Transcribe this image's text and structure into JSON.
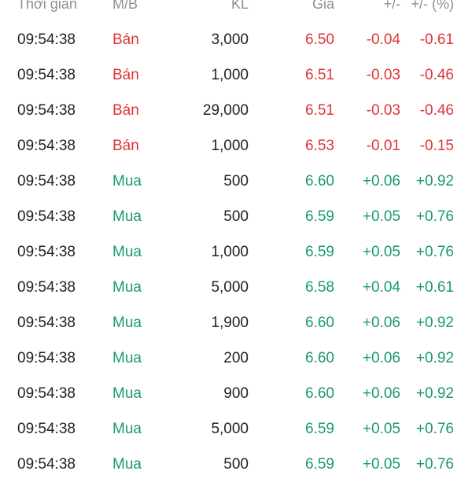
{
  "header": {
    "time": "Thời gian",
    "side": "M/B",
    "volume": "KL",
    "price": "Giá",
    "change": "+/-",
    "percent": "+/- (%)"
  },
  "colors": {
    "sell": "#e0333a",
    "buy": "#1a9a6c",
    "header": "#8e8e93",
    "text": "#222222"
  },
  "rows": [
    {
      "time": "09:54:38",
      "side": "Bán",
      "type": "sell",
      "volume": "3,000",
      "price": "6.50",
      "change": "-0.04",
      "percent": "-0.61"
    },
    {
      "time": "09:54:38",
      "side": "Bán",
      "type": "sell",
      "volume": "1,000",
      "price": "6.51",
      "change": "-0.03",
      "percent": "-0.46"
    },
    {
      "time": "09:54:38",
      "side": "Bán",
      "type": "sell",
      "volume": "29,000",
      "price": "6.51",
      "change": "-0.03",
      "percent": "-0.46"
    },
    {
      "time": "09:54:38",
      "side": "Bán",
      "type": "sell",
      "volume": "1,000",
      "price": "6.53",
      "change": "-0.01",
      "percent": "-0.15"
    },
    {
      "time": "09:54:38",
      "side": "Mua",
      "type": "buy",
      "volume": "500",
      "price": "6.60",
      "change": "+0.06",
      "percent": "+0.92"
    },
    {
      "time": "09:54:38",
      "side": "Mua",
      "type": "buy",
      "volume": "500",
      "price": "6.59",
      "change": "+0.05",
      "percent": "+0.76"
    },
    {
      "time": "09:54:38",
      "side": "Mua",
      "type": "buy",
      "volume": "1,000",
      "price": "6.59",
      "change": "+0.05",
      "percent": "+0.76"
    },
    {
      "time": "09:54:38",
      "side": "Mua",
      "type": "buy",
      "volume": "5,000",
      "price": "6.58",
      "change": "+0.04",
      "percent": "+0.61"
    },
    {
      "time": "09:54:38",
      "side": "Mua",
      "type": "buy",
      "volume": "1,900",
      "price": "6.60",
      "change": "+0.06",
      "percent": "+0.92"
    },
    {
      "time": "09:54:38",
      "side": "Mua",
      "type": "buy",
      "volume": "200",
      "price": "6.60",
      "change": "+0.06",
      "percent": "+0.92"
    },
    {
      "time": "09:54:38",
      "side": "Mua",
      "type": "buy",
      "volume": "900",
      "price": "6.60",
      "change": "+0.06",
      "percent": "+0.92"
    },
    {
      "time": "09:54:38",
      "side": "Mua",
      "type": "buy",
      "volume": "5,000",
      "price": "6.59",
      "change": "+0.05",
      "percent": "+0.76"
    },
    {
      "time": "09:54:38",
      "side": "Mua",
      "type": "buy",
      "volume": "500",
      "price": "6.59",
      "change": "+0.05",
      "percent": "+0.76"
    }
  ]
}
